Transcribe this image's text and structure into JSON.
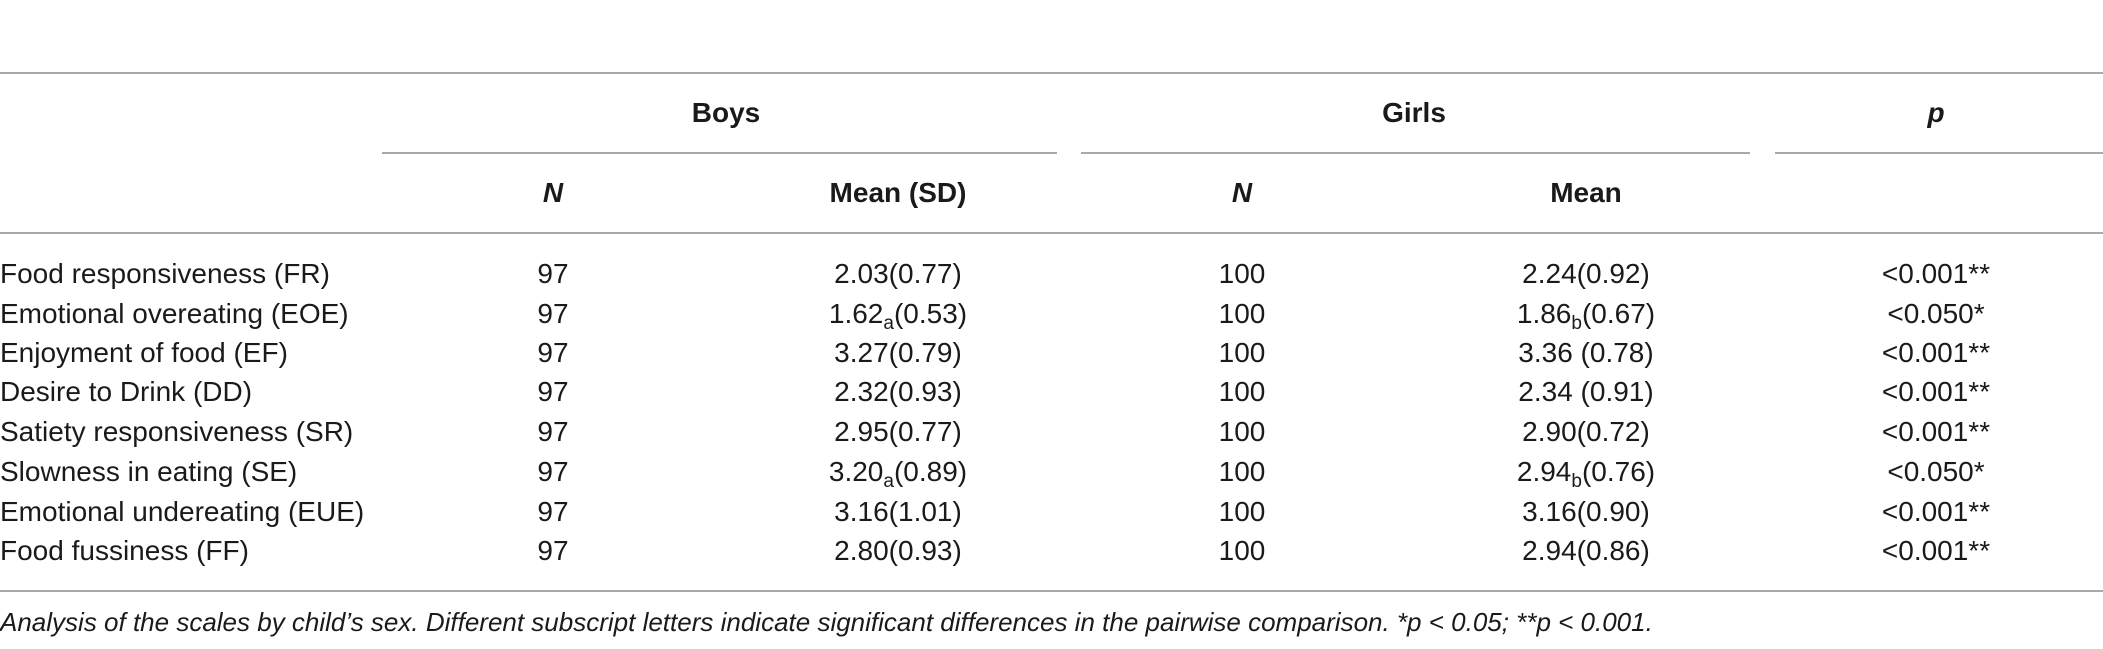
{
  "table": {
    "headers": {
      "group_boys": "Boys",
      "group_girls": "Girls",
      "group_p": "p",
      "boys_n": "N",
      "boys_mean": "Mean (SD)",
      "girls_n": "N",
      "girls_mean": "Mean"
    },
    "rows": [
      {
        "scale": "Food responsiveness (FR)",
        "boys_n": "97",
        "boys_mean": "2.03",
        "boys_sub": "",
        "boys_sd": "(0.77)",
        "girls_n": "100",
        "girls_mean": "2.24",
        "girls_sub": "",
        "girls_sd": "(0.92)",
        "p": "<0.001**"
      },
      {
        "scale": "Emotional overeating (EOE)",
        "boys_n": "97",
        "boys_mean": "1.62",
        "boys_sub": "a",
        "boys_sd": "(0.53)",
        "girls_n": "100",
        "girls_mean": "1.86",
        "girls_sub": "b",
        "girls_sd": "(0.67)",
        "p": "<0.050*"
      },
      {
        "scale": "Enjoyment of food (EF)",
        "boys_n": "97",
        "boys_mean": "3.27",
        "boys_sub": "",
        "boys_sd": "(0.79)",
        "girls_n": "100",
        "girls_mean": "3.36",
        "girls_sub": "",
        "girls_sd": " (0.78)",
        "p": "<0.001**"
      },
      {
        "scale": "Desire to Drink (DD)",
        "boys_n": "97",
        "boys_mean": "2.32",
        "boys_sub": "",
        "boys_sd": "(0.93)",
        "girls_n": "100",
        "girls_mean": "2.34",
        "girls_sub": "",
        "girls_sd": " (0.91)",
        "p": "<0.001**"
      },
      {
        "scale": "Satiety responsiveness (SR)",
        "boys_n": "97",
        "boys_mean": "2.95",
        "boys_sub": "",
        "boys_sd": "(0.77)",
        "girls_n": "100",
        "girls_mean": "2.90",
        "girls_sub": "",
        "girls_sd": "(0.72)",
        "p": "<0.001**"
      },
      {
        "scale": "Slowness in eating (SE)",
        "boys_n": "97",
        "boys_mean": "3.20",
        "boys_sub": "a",
        "boys_sd": "(0.89)",
        "girls_n": "100",
        "girls_mean": "2.94",
        "girls_sub": "b",
        "girls_sd": "(0.76)",
        "p": "<0.050*"
      },
      {
        "scale": "Emotional undereating (EUE)",
        "boys_n": "97",
        "boys_mean": "3.16",
        "boys_sub": "",
        "boys_sd": "(1.01)",
        "girls_n": "100",
        "girls_mean": "3.16",
        "girls_sub": "",
        "girls_sd": "(0.90)",
        "p": "<0.001**"
      },
      {
        "scale": "Food fussiness (FF)",
        "boys_n": "97",
        "boys_mean": "2.80",
        "boys_sub": "",
        "boys_sd": "(0.93)",
        "girls_n": "100",
        "girls_mean": "2.94",
        "girls_sub": "",
        "girls_sd": "(0.86)",
        "p": "<0.001**"
      }
    ],
    "footnote": "Analysis of the scales by child’s sex. Different subscript letters indicate significant differences in the pairwise comparison.  *p < 0.05;  **p < 0.001."
  }
}
